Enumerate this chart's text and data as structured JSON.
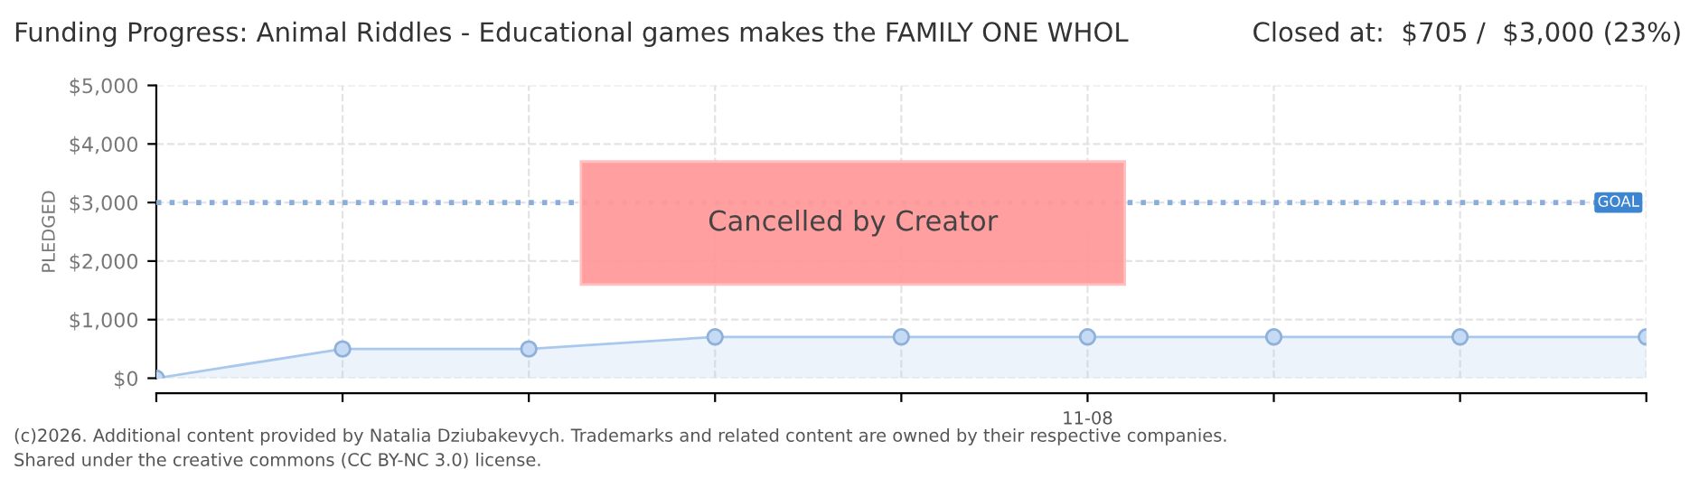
{
  "chart_data": {
    "type": "area",
    "title": "Funding Progress: Animal Riddles - Educational games makes the FAMILY ONE WHOL",
    "subtitle": "Closed at:  $705 /  $3,000 (23%)",
    "ylabel": "PLEDGED",
    "categories": [
      null,
      null,
      null,
      null,
      null,
      "11-08",
      null,
      null,
      null
    ],
    "series": [
      {
        "color": "#a9c8ee",
        "values": [
          0,
          500,
          500,
          705,
          705,
          705,
          705,
          705,
          705
        ]
      }
    ],
    "ylim": [
      0,
      5000
    ],
    "yticks": [
      {
        "value": 0,
        "label": "$0"
      },
      {
        "value": 1000,
        "label": "$1,000"
      },
      {
        "value": 2000,
        "label": "$2,000"
      },
      {
        "value": 3000,
        "label": "$3,000"
      },
      {
        "value": 4000,
        "label": "$4,000"
      },
      {
        "value": 5000,
        "label": "$5,000"
      }
    ],
    "ref_lines": [
      {
        "axis": "y",
        "value": 3000,
        "label": "GOAL",
        "color": "#8aaedb",
        "line_style": "dotted"
      }
    ],
    "grid": true,
    "marker": "circle",
    "annotations": [
      "Cancelled by Creator",
      "(c)2026. Additional content provided by Natalia Dziubakevych. Trademarks and related content are owned by their respective companies.",
      "Shared under the creative commons (CC BY-NC 3.0) license."
    ]
  }
}
